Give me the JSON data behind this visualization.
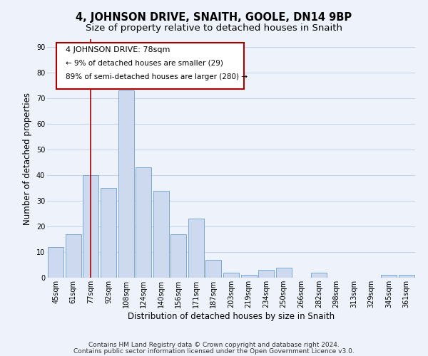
{
  "title": "4, JOHNSON DRIVE, SNAITH, GOOLE, DN14 9BP",
  "subtitle": "Size of property relative to detached houses in Snaith",
  "xlabel": "Distribution of detached houses by size in Snaith",
  "ylabel": "Number of detached properties",
  "categories": [
    "45sqm",
    "61sqm",
    "77sqm",
    "92sqm",
    "108sqm",
    "124sqm",
    "140sqm",
    "156sqm",
    "171sqm",
    "187sqm",
    "203sqm",
    "219sqm",
    "234sqm",
    "250sqm",
    "266sqm",
    "282sqm",
    "298sqm",
    "313sqm",
    "329sqm",
    "345sqm",
    "361sqm"
  ],
  "values": [
    12,
    17,
    40,
    35,
    73,
    43,
    34,
    17,
    23,
    7,
    2,
    1,
    3,
    4,
    0,
    2,
    0,
    0,
    0,
    1,
    1
  ],
  "bar_color": "#ccd9ee",
  "bar_edge_color": "#7baad4",
  "highlight_index": 2,
  "vline_color": "#aa0000",
  "ylim": [
    0,
    93
  ],
  "yticks": [
    0,
    10,
    20,
    30,
    40,
    50,
    60,
    70,
    80,
    90
  ],
  "annotation_title": "4 JOHNSON DRIVE: 78sqm",
  "annotation_line1": "← 9% of detached houses are smaller (29)",
  "annotation_line2": "89% of semi-detached houses are larger (280) →",
  "footer_line1": "Contains HM Land Registry data © Crown copyright and database right 2024.",
  "footer_line2": "Contains public sector information licensed under the Open Government Licence v3.0.",
  "background_color": "#eef2fa",
  "grid_color": "#c8d4e8",
  "title_fontsize": 10.5,
  "subtitle_fontsize": 9.5,
  "axis_label_fontsize": 8.5,
  "tick_fontsize": 7,
  "footer_fontsize": 6.5,
  "annotation_fontsize": 7.5,
  "annotation_title_fontsize": 8
}
